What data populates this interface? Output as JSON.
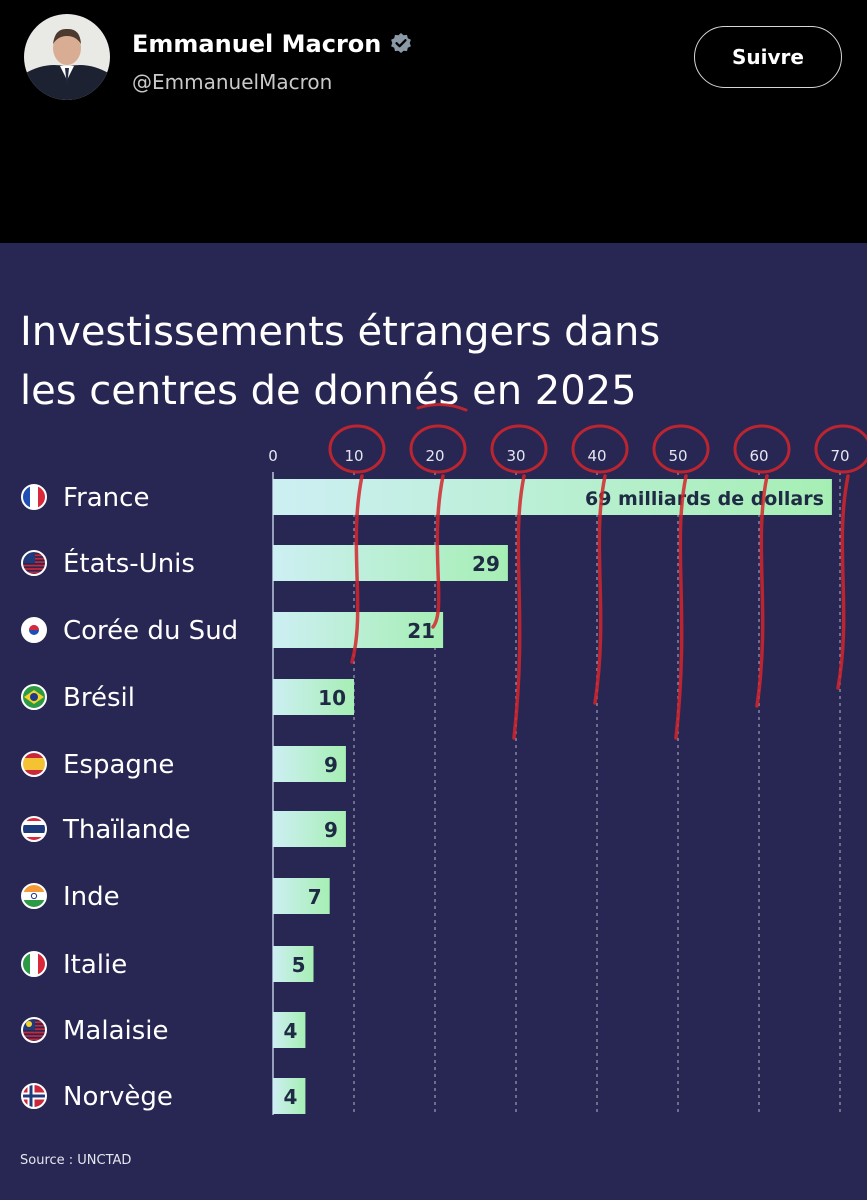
{
  "tweet": {
    "author_name": "Emmanuel Macron",
    "handle": "@EmmanuelMacron",
    "follow_label": "Suivre"
  },
  "chart_data": {
    "type": "bar",
    "orientation": "horizontal",
    "title_lines": [
      "Investissements étrangers dans",
      "les centres de donnés en 2025"
    ],
    "categories": [
      "France",
      "États-Unis",
      "Corée du Sud",
      "Brésil",
      "Espagne",
      "Thaïlande",
      "Inde",
      "Italie",
      "Malaisie",
      "Norvège"
    ],
    "values": [
      69,
      29,
      21,
      10,
      9,
      9,
      7,
      5,
      4,
      4
    ],
    "data_labels": [
      "69 milliards de dollars",
      "29",
      "21",
      "10",
      "9",
      "9",
      "7",
      "5",
      "4",
      "4"
    ],
    "x_ticks": [
      0,
      10,
      20,
      30,
      40,
      50,
      60,
      70
    ],
    "xlim": [
      0,
      70
    ],
    "grid": true,
    "source": "Source : UNCTAD",
    "colors": {
      "background": "#282652",
      "bar_start": "#cdeff3",
      "bar_end": "#a6efb4",
      "annotation": "#d4262c"
    }
  }
}
